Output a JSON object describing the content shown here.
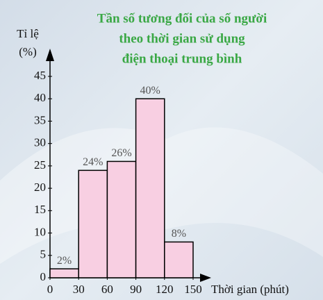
{
  "chart_data": {
    "type": "histogram",
    "title": [
      "Tần số tương đối của số người",
      "theo thời gian sử dụng",
      "điện thoại trung bình"
    ],
    "ylabel": [
      "Tỉ lệ",
      "(%)"
    ],
    "xlabel": "Thời gian (phút)",
    "bins": [
      0,
      30,
      60,
      90,
      120,
      150
    ],
    "values": [
      2,
      24,
      26,
      40,
      8
    ],
    "value_labels": [
      "2%",
      "24%",
      "26%",
      "40%",
      "8%"
    ],
    "color": "#f8cfe2",
    "xlim": [
      0,
      150
    ],
    "xticks": [
      0,
      30,
      60,
      90,
      120,
      150
    ],
    "ylim": [
      0,
      45
    ],
    "yticks": [
      0,
      5,
      10,
      15,
      20,
      25,
      30,
      35,
      40,
      45
    ]
  }
}
